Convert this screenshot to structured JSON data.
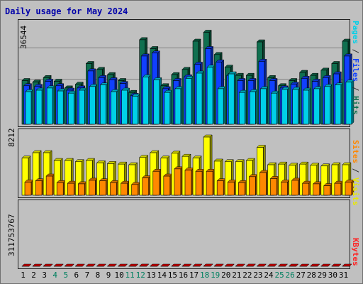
{
  "chart_data": {
    "title": "Daily usage for May 2024",
    "type": "bar",
    "categories": [
      "1",
      "2",
      "3",
      "4",
      "5",
      "6",
      "7",
      "8",
      "9",
      "10",
      "11",
      "12",
      "13",
      "14",
      "15",
      "16",
      "17",
      "18",
      "19",
      "20",
      "21",
      "22",
      "23",
      "24",
      "25",
      "26",
      "27",
      "28",
      "29",
      "30",
      "31"
    ],
    "weekend_days": [
      "4",
      "5",
      "11",
      "12",
      "18",
      "19",
      "25",
      "26"
    ],
    "panels": [
      {
        "ymax_label": "36544",
        "ymax": 36544,
        "grid": true,
        "right_label_parts": [
          {
            "text": "Pages",
            "color": "#00d0e8"
          },
          {
            "text": " / ",
            "color": "#303030"
          },
          {
            "text": "Files",
            "color": "#1040ff"
          },
          {
            "text": " / ",
            "color": "#303030"
          },
          {
            "text": "Hits",
            "color": "#107050"
          }
        ],
        "series": [
          {
            "key": "hits",
            "color": "#107050",
            "values": [
              16530,
              15970,
              17650,
              16250,
              13730,
              15130,
              22980,
              20740,
              18780,
              16530,
              12050,
              32000,
              28630,
              14570,
              18780,
              20740,
              31440,
              34810,
              26380,
              21580,
              18500,
              18500,
              31160,
              17650,
              14570,
              16530,
              19620,
              18500,
              20460,
              22980,
              31440
            ]
          },
          {
            "key": "files",
            "color": "#1040ff",
            "values": [
              14570,
              14300,
              16250,
              14570,
              12890,
              13730,
              20180,
              17650,
              16810,
              15410,
              10920,
              25820,
              26940,
              13450,
              16530,
              17930,
              22700,
              28630,
              23540,
              18500,
              16530,
              16530,
              23820,
              16530,
              13730,
              15130,
              17370,
              16250,
              17650,
              19060,
              25820
            ]
          },
          {
            "key": "pages",
            "color": "#00d0e8",
            "values": [
              12330,
              12890,
              13730,
              12610,
              11770,
              12890,
              14300,
              14860,
              12330,
              12890,
              10640,
              17930,
              16810,
              12050,
              13450,
              17370,
              19340,
              21580,
              13450,
              19060,
              12050,
              12330,
              13450,
              11770,
              13180,
              13180,
              12890,
              13450,
              14300,
              14860,
              15970
            ]
          }
        ]
      },
      {
        "ymax_label": "8212",
        "ymax": 8212,
        "grid": false,
        "right_label_parts": [
          {
            "text": "Sites",
            "color": "#ff8800"
          },
          {
            "text": " / ",
            "color": "#303030"
          },
          {
            "text": "Visits",
            "color": "#e8e800"
          }
        ],
        "series": [
          {
            "key": "visits",
            "color": "#ffff00",
            "values": [
              5240,
              6000,
              6000,
              4900,
              4900,
              4730,
              4900,
              4560,
              4470,
              4390,
              4300,
              5330,
              6000,
              5240,
              5920,
              5490,
              5240,
              8210,
              4810,
              4730,
              4730,
              4900,
              6760,
              4300,
              4390,
              4220,
              4390,
              4220,
              4130,
              4300,
              4300
            ]
          },
          {
            "key": "sites",
            "color": "#ff8800",
            "values": [
              1860,
              2030,
              2700,
              1780,
              1690,
              1610,
              2110,
              2030,
              1780,
              1690,
              1520,
              2450,
              3380,
              2700,
              3720,
              3550,
              3380,
              3380,
              2030,
              1860,
              1780,
              2620,
              3210,
              2360,
              1860,
              2110,
              1690,
              1610,
              1350,
              1690,
              1860
            ]
          }
        ]
      },
      {
        "ymax_label": "311753767",
        "ymax": 311753767,
        "grid": false,
        "right_label_parts": [
          {
            "text": "KBytes",
            "color": "#ff2020"
          }
        ],
        "series": [
          {
            "key": "kbytes",
            "color": "#ff0000",
            "values": [
              54000,
              33000,
              54000,
              75000,
              33000,
              57000,
              168000,
              63000,
              99000,
              99000,
              33000,
              258000,
              132000,
              27000,
              84000,
              63000,
              186000,
              294000,
              192000,
              111000,
              93000,
              264000,
              168000,
              288000,
              168000,
              120000,
              51000,
              156000,
              60000,
              186000,
              189000
            ]
          }
        ]
      }
    ]
  }
}
